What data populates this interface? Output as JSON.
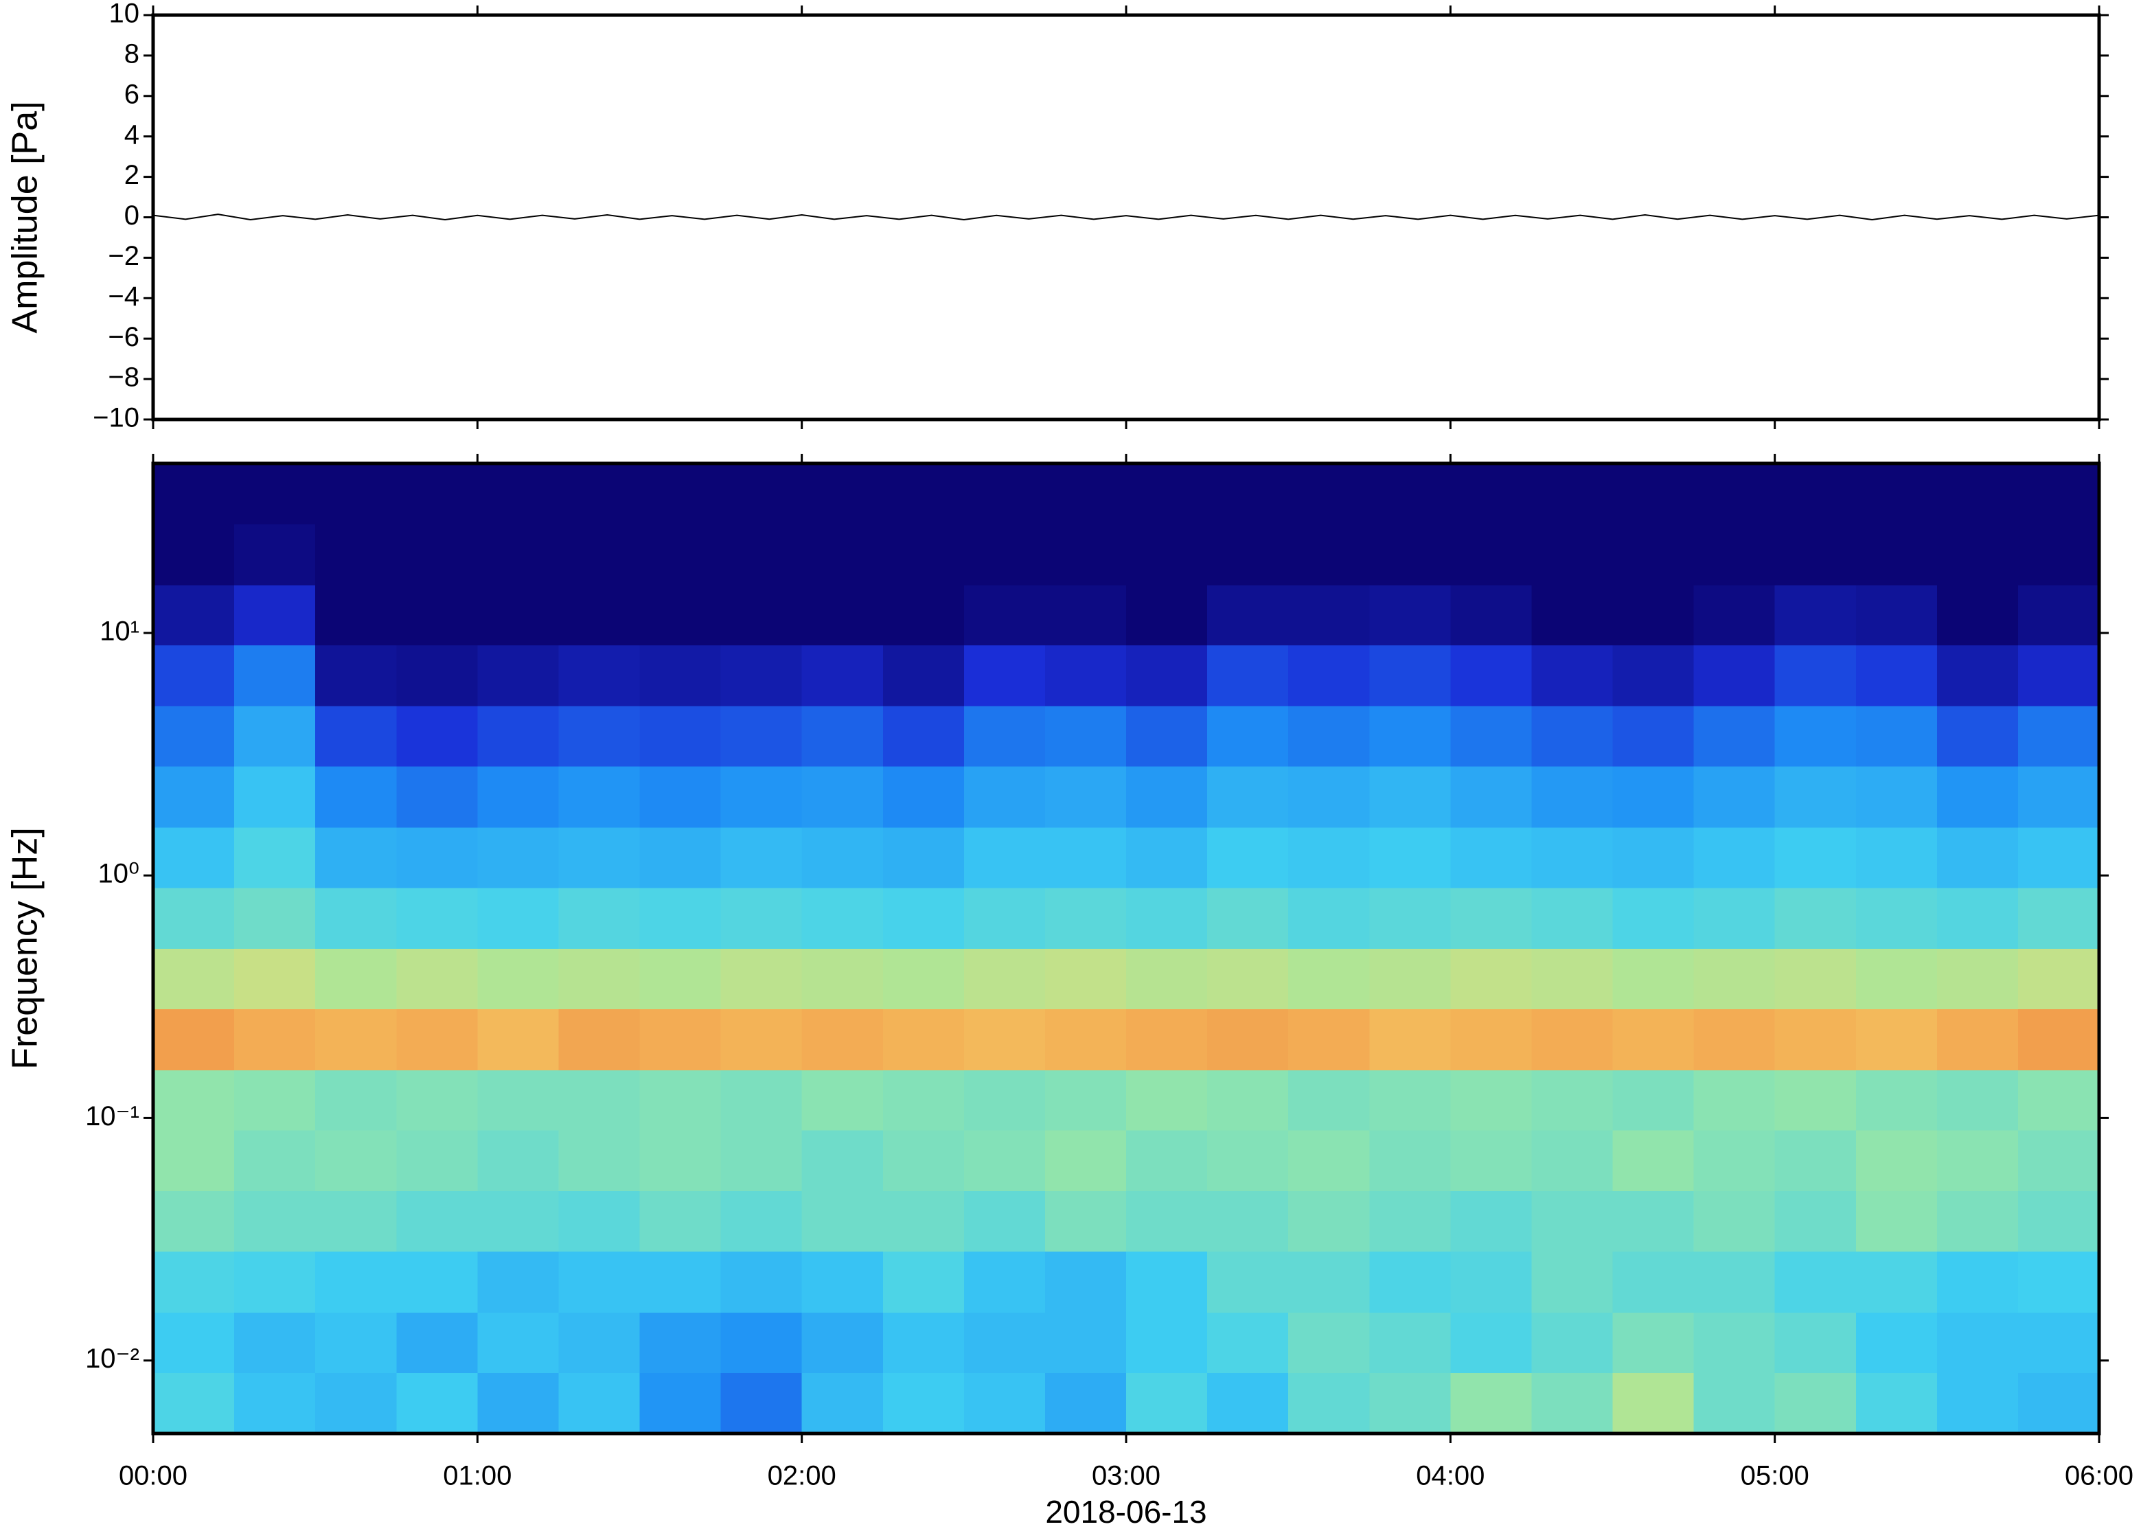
{
  "chart_data": [
    {
      "type": "line",
      "ylabel": "Amplitude [Pa]",
      "color": "#000000",
      "xlim": [
        0,
        6
      ],
      "xticks": [
        {
          "value": 0,
          "label": "00:00"
        },
        {
          "value": 1,
          "label": "01:00"
        },
        {
          "value": 2,
          "label": "02:00"
        },
        {
          "value": 3,
          "label": "03:00"
        },
        {
          "value": 4,
          "label": "04:00"
        },
        {
          "value": 5,
          "label": "05:00"
        },
        {
          "value": 6,
          "label": "06:00"
        }
      ],
      "ylim": [
        -10,
        10
      ],
      "yticks": [
        {
          "value": -10,
          "label": "−10"
        },
        {
          "value": -8,
          "label": "−8"
        },
        {
          "value": -6,
          "label": "−6"
        },
        {
          "value": -4,
          "label": "−4"
        },
        {
          "value": -2,
          "label": "−2"
        },
        0,
        2,
        4,
        6,
        8,
        10
      ],
      "x": [
        0,
        0.1,
        0.2,
        0.3,
        0.4,
        0.5,
        0.6,
        0.7,
        0.8,
        0.9,
        1,
        1.1,
        1.2,
        1.3,
        1.4,
        1.5,
        1.6,
        1.7,
        1.8,
        1.9,
        2,
        2.1,
        2.2,
        2.3,
        2.4,
        2.5,
        2.6,
        2.7,
        2.8,
        2.9,
        3,
        3.1,
        3.2,
        3.3,
        3.4,
        3.5,
        3.6,
        3.7,
        3.8,
        3.9,
        4,
        4.1,
        4.2,
        4.3,
        4.4,
        4.5,
        4.6,
        4.7,
        4.8,
        4.9,
        5,
        5.1,
        5.2,
        5.3,
        5.4,
        5.5,
        5.6,
        5.7,
        5.8,
        5.9,
        6
      ],
      "values": [
        0.1,
        -0.1,
        0.15,
        -0.12,
        0.08,
        -0.1,
        0.12,
        -0.08,
        0.1,
        -0.12,
        0.09,
        -0.1,
        0.1,
        -0.08,
        0.12,
        -0.1,
        0.08,
        -0.1,
        0.1,
        -0.09,
        0.12,
        -0.1,
        0.08,
        -0.1,
        0.1,
        -0.12,
        0.09,
        -0.08,
        0.1,
        -0.1,
        0.08,
        -0.1,
        0.1,
        -0.08,
        0.09,
        -0.1,
        0.1,
        -0.09,
        0.08,
        -0.1,
        0.1,
        -0.1,
        0.09,
        -0.08,
        0.1,
        -0.1,
        0.12,
        -0.09,
        0.1,
        -0.1,
        0.08,
        -0.1,
        0.1,
        -0.12,
        0.1,
        -0.09,
        0.08,
        -0.1,
        0.1,
        -0.08,
        0.1
      ]
    },
    {
      "type": "heatmap",
      "ylabel": "Frequency [Hz]",
      "xlabel": "2018-06-13",
      "ylog": true,
      "xlim": [
        0,
        6
      ],
      "xticks": [
        {
          "value": 0,
          "label": "00:00"
        },
        {
          "value": 1,
          "label": "01:00"
        },
        {
          "value": 2,
          "label": "02:00"
        },
        {
          "value": 3,
          "label": "03:00"
        },
        {
          "value": 4,
          "label": "04:00"
        },
        {
          "value": 5,
          "label": "05:00"
        },
        {
          "value": 6,
          "label": "06:00"
        }
      ],
      "ylim": [
        0.005,
        50
      ],
      "yticks": [
        {
          "value": 0.01,
          "label": "10⁻²"
        },
        {
          "value": 0.1,
          "label": "10⁻¹"
        },
        {
          "value": 1,
          "label": "10⁰"
        },
        {
          "value": 10,
          "label": "10¹"
        }
      ],
      "x_bins": [
        0,
        0.25,
        0.5,
        0.75,
        1,
        1.25,
        1.5,
        1.75,
        2,
        2.25,
        2.5,
        2.75,
        3,
        3.25,
        3.5,
        3.75,
        4,
        4.25,
        4.5,
        4.75,
        5,
        5.25,
        5.5,
        5.75,
        6
      ],
      "y_bins": [
        0.005,
        0.0089,
        0.0158,
        0.0282,
        0.0501,
        0.0891,
        0.158,
        0.282,
        0.501,
        0.891,
        1.58,
        2.82,
        5.01,
        8.91,
        15.8,
        28.2,
        50
      ],
      "zlim": [
        0,
        1
      ],
      "colormap": [
        "#0b0575",
        "#1a2fd9",
        "#1e8ef5",
        "#3fd0f2",
        "#9fe8a0",
        "#f5d76a",
        "#f07a3a",
        "#c8281e"
      ],
      "z": [
        [
          0.45,
          0.4,
          0.38,
          0.42,
          0.35,
          0.4,
          0.3,
          0.25,
          0.38,
          0.42,
          0.4,
          0.35,
          0.45,
          0.4,
          0.48,
          0.5,
          0.55,
          0.52,
          0.6,
          0.5,
          0.52,
          0.45,
          0.4,
          0.38
        ],
        [
          0.42,
          0.38,
          0.4,
          0.35,
          0.4,
          0.38,
          0.32,
          0.3,
          0.35,
          0.4,
          0.38,
          0.38,
          0.42,
          0.45,
          0.5,
          0.48,
          0.45,
          0.48,
          0.52,
          0.5,
          0.48,
          0.42,
          0.4,
          0.4
        ],
        [
          0.45,
          0.44,
          0.42,
          0.42,
          0.38,
          0.4,
          0.4,
          0.38,
          0.4,
          0.45,
          0.4,
          0.38,
          0.42,
          0.48,
          0.48,
          0.45,
          0.46,
          0.5,
          0.48,
          0.48,
          0.45,
          0.45,
          0.42,
          0.43
        ],
        [
          0.52,
          0.5,
          0.5,
          0.48,
          0.48,
          0.47,
          0.5,
          0.48,
          0.5,
          0.5,
          0.48,
          0.52,
          0.5,
          0.5,
          0.52,
          0.5,
          0.48,
          0.5,
          0.5,
          0.52,
          0.5,
          0.54,
          0.52,
          0.5
        ],
        [
          0.55,
          0.52,
          0.53,
          0.52,
          0.5,
          0.52,
          0.53,
          0.52,
          0.5,
          0.52,
          0.53,
          0.55,
          0.52,
          0.53,
          0.54,
          0.52,
          0.53,
          0.52,
          0.55,
          0.53,
          0.52,
          0.55,
          0.54,
          0.52
        ],
        [
          0.55,
          0.54,
          0.52,
          0.53,
          0.52,
          0.52,
          0.53,
          0.52,
          0.54,
          0.53,
          0.52,
          0.53,
          0.55,
          0.54,
          0.52,
          0.53,
          0.54,
          0.53,
          0.52,
          0.54,
          0.55,
          0.53,
          0.52,
          0.54
        ],
        [
          0.8,
          0.78,
          0.77,
          0.78,
          0.76,
          0.79,
          0.78,
          0.77,
          0.78,
          0.77,
          0.76,
          0.77,
          0.78,
          0.79,
          0.78,
          0.76,
          0.77,
          0.78,
          0.77,
          0.78,
          0.77,
          0.76,
          0.78,
          0.8
        ],
        [
          0.62,
          0.64,
          0.6,
          0.62,
          0.6,
          0.61,
          0.6,
          0.62,
          0.61,
          0.6,
          0.62,
          0.63,
          0.61,
          0.62,
          0.6,
          0.61,
          0.63,
          0.62,
          0.6,
          0.61,
          0.62,
          0.6,
          0.61,
          0.63
        ],
        [
          0.48,
          0.5,
          0.46,
          0.45,
          0.44,
          0.46,
          0.45,
          0.46,
          0.45,
          0.44,
          0.46,
          0.47,
          0.46,
          0.48,
          0.46,
          0.47,
          0.48,
          0.47,
          0.45,
          0.46,
          0.48,
          0.47,
          0.46,
          0.48
        ],
        [
          0.4,
          0.45,
          0.36,
          0.35,
          0.36,
          0.37,
          0.36,
          0.38,
          0.37,
          0.36,
          0.4,
          0.4,
          0.38,
          0.42,
          0.41,
          0.42,
          0.4,
          0.39,
          0.38,
          0.4,
          0.42,
          0.41,
          0.38,
          0.4
        ],
        [
          0.32,
          0.4,
          0.28,
          0.25,
          0.28,
          0.3,
          0.28,
          0.3,
          0.31,
          0.28,
          0.33,
          0.34,
          0.31,
          0.36,
          0.35,
          0.37,
          0.34,
          0.31,
          0.3,
          0.33,
          0.36,
          0.35,
          0.3,
          0.33
        ],
        [
          0.25,
          0.34,
          0.18,
          0.15,
          0.18,
          0.2,
          0.19,
          0.2,
          0.22,
          0.18,
          0.25,
          0.26,
          0.22,
          0.28,
          0.26,
          0.28,
          0.25,
          0.22,
          0.2,
          0.24,
          0.28,
          0.27,
          0.2,
          0.25
        ],
        [
          0.18,
          0.26,
          0.05,
          0.04,
          0.06,
          0.08,
          0.07,
          0.08,
          0.1,
          0.06,
          0.14,
          0.12,
          0.1,
          0.18,
          0.16,
          0.18,
          0.15,
          0.1,
          0.08,
          0.12,
          0.18,
          0.16,
          0.08,
          0.12
        ],
        [
          0.06,
          0.12,
          0,
          0,
          0,
          0,
          0,
          0,
          0,
          0,
          0.02,
          0.02,
          0,
          0.04,
          0.04,
          0.05,
          0.03,
          0,
          0,
          0.02,
          0.06,
          0.05,
          0,
          0.03
        ],
        [
          0,
          0.02,
          0,
          0,
          0,
          0,
          0,
          0,
          0,
          0,
          0,
          0,
          0,
          0,
          0,
          0,
          0,
          0,
          0,
          0,
          0,
          0,
          0,
          0
        ],
        [
          0,
          0,
          0,
          0,
          0,
          0,
          0,
          0,
          0,
          0,
          0,
          0,
          0,
          0,
          0,
          0,
          0,
          0,
          0,
          0,
          0,
          0,
          0,
          0
        ]
      ]
    }
  ]
}
